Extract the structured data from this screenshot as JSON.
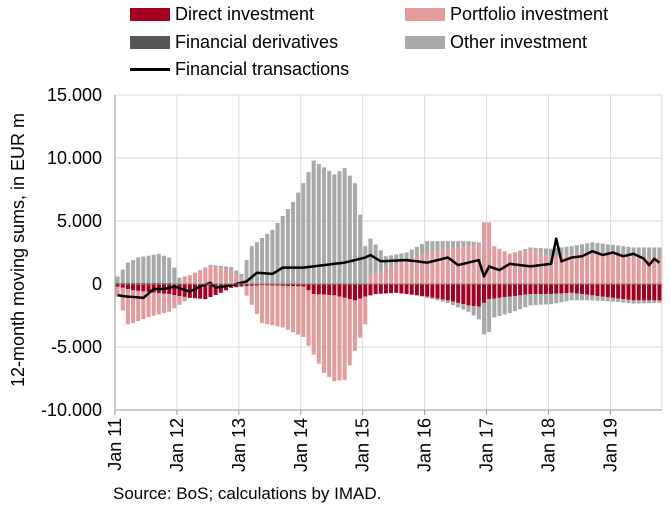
{
  "legend": {
    "direct": "Direct investment",
    "portfolio": "Portfolio investment",
    "derivatives": "Financial derivatives",
    "other": "Other investment",
    "transactions": "Financial transactions"
  },
  "source": "Source: BoS; calculations by IMAD.",
  "colors": {
    "direct": "#a50021",
    "portfolio": "#e39b9b",
    "derivatives": "#555555",
    "other": "#a9a9a9",
    "transactions": "#000000"
  },
  "chart_data": {
    "type": "bar",
    "subtype": "stacked-bar-with-line",
    "ylabel": "12-month moving sums, in EUR m",
    "ylim": [
      -10000,
      15000
    ],
    "y_ticks": [
      "15.000",
      "10.000",
      "5.000",
      "0",
      "-5.000",
      "-10.000"
    ],
    "y_tick_values": [
      15000,
      10000,
      5000,
      0,
      -5000,
      -10000
    ],
    "x_ticks": [
      "Jan 11",
      "Jan 12",
      "Jan 13",
      "Jan 14",
      "Jan 15",
      "Jan 16",
      "Jan 17",
      "Jan 18",
      "Jan 19"
    ],
    "x_tick_index": [
      0,
      12,
      24,
      36,
      48,
      60,
      72,
      84,
      96
    ],
    "grid": true,
    "periods": 106,
    "anchors": {
      "direct_pos": [
        [
          0,
          0
        ],
        [
          12,
          0
        ],
        [
          24,
          0
        ],
        [
          36,
          0
        ],
        [
          48,
          0
        ],
        [
          60,
          0
        ],
        [
          72,
          0
        ],
        [
          84,
          0
        ],
        [
          96,
          0
        ],
        [
          105,
          0
        ]
      ],
      "direct_neg": [
        [
          0,
          -200
        ],
        [
          3,
          -500
        ],
        [
          10,
          -800
        ],
        [
          14,
          -1100
        ],
        [
          17,
          -1200
        ],
        [
          20,
          -700
        ],
        [
          22,
          -300
        ],
        [
          24,
          -200
        ],
        [
          28,
          -100
        ],
        [
          36,
          -200
        ],
        [
          38,
          -800
        ],
        [
          42,
          -900
        ],
        [
          46,
          -1300
        ],
        [
          48,
          -1000
        ],
        [
          50,
          -800
        ],
        [
          54,
          -700
        ],
        [
          58,
          -900
        ],
        [
          60,
          -1000
        ],
        [
          64,
          -1300
        ],
        [
          68,
          -1700
        ],
        [
          70,
          -1800
        ],
        [
          72,
          -1200
        ],
        [
          76,
          -1000
        ],
        [
          80,
          -800
        ],
        [
          84,
          -800
        ],
        [
          88,
          -700
        ],
        [
          92,
          -900
        ],
        [
          96,
          -1100
        ],
        [
          100,
          -1300
        ],
        [
          105,
          -1300
        ]
      ],
      "portfolio_pos": [
        [
          0,
          0
        ],
        [
          12,
          0
        ],
        [
          14,
          700
        ],
        [
          18,
          1400
        ],
        [
          22,
          1100
        ],
        [
          24,
          500
        ],
        [
          26,
          0
        ],
        [
          48,
          0
        ],
        [
          49,
          600
        ],
        [
          52,
          1300
        ],
        [
          56,
          1800
        ],
        [
          60,
          2500
        ],
        [
          64,
          2800
        ],
        [
          68,
          3000
        ],
        [
          70,
          3100
        ],
        [
          71,
          4900
        ],
        [
          72,
          4900
        ],
        [
          73,
          3000
        ],
        [
          76,
          2400
        ],
        [
          80,
          2700
        ],
        [
          84,
          2200
        ],
        [
          88,
          2300
        ],
        [
          92,
          2400
        ],
        [
          96,
          2400
        ],
        [
          100,
          2100
        ],
        [
          105,
          2000
        ]
      ],
      "portfolio_neg": [
        [
          0,
          -800
        ],
        [
          2,
          -2800
        ],
        [
          6,
          -2000
        ],
        [
          10,
          -1400
        ],
        [
          12,
          -700
        ],
        [
          14,
          0
        ],
        [
          24,
          0
        ],
        [
          26,
          -1500
        ],
        [
          28,
          -3000
        ],
        [
          32,
          -3300
        ],
        [
          36,
          -4000
        ],
        [
          38,
          -4800
        ],
        [
          40,
          -6200
        ],
        [
          42,
          -6800
        ],
        [
          44,
          -6500
        ],
        [
          46,
          -4000
        ],
        [
          48,
          -2200
        ],
        [
          49,
          0
        ],
        [
          105,
          0
        ]
      ],
      "derivatives_pos": [
        [
          0,
          100
        ],
        [
          10,
          100
        ],
        [
          12,
          0
        ],
        [
          105,
          0
        ]
      ],
      "derivatives_neg": [
        [
          0,
          0
        ],
        [
          105,
          0
        ]
      ],
      "other_pos": [
        [
          0,
          500
        ],
        [
          2,
          1600
        ],
        [
          4,
          2000
        ],
        [
          8,
          2300
        ],
        [
          10,
          2000
        ],
        [
          12,
          500
        ],
        [
          14,
          0
        ],
        [
          24,
          300
        ],
        [
          26,
          3000
        ],
        [
          30,
          4300
        ],
        [
          34,
          6500
        ],
        [
          36,
          8000
        ],
        [
          38,
          9800
        ],
        [
          42,
          8700
        ],
        [
          44,
          9200
        ],
        [
          46,
          8000
        ],
        [
          48,
          3000
        ],
        [
          49,
          3000
        ],
        [
          52,
          900
        ],
        [
          56,
          700
        ],
        [
          60,
          900
        ],
        [
          64,
          600
        ],
        [
          68,
          400
        ],
        [
          70,
          200
        ],
        [
          71,
          0
        ],
        [
          72,
          0
        ],
        [
          73,
          0
        ],
        [
          76,
          0
        ],
        [
          80,
          200
        ],
        [
          84,
          600
        ],
        [
          88,
          700
        ],
        [
          92,
          900
        ],
        [
          96,
          700
        ],
        [
          100,
          800
        ],
        [
          105,
          900
        ]
      ],
      "other_neg": [
        [
          0,
          0
        ],
        [
          48,
          0
        ],
        [
          58,
          0
        ],
        [
          60,
          -100
        ],
        [
          64,
          -200
        ],
        [
          68,
          -500
        ],
        [
          70,
          -1000
        ],
        [
          71,
          -2500
        ],
        [
          72,
          -2600
        ],
        [
          73,
          -1500
        ],
        [
          76,
          -1300
        ],
        [
          80,
          -900
        ],
        [
          84,
          -800
        ],
        [
          88,
          -600
        ],
        [
          92,
          -400
        ],
        [
          96,
          -300
        ],
        [
          105,
          -200
        ]
      ],
      "transactions": [
        [
          0,
          -900
        ],
        [
          2,
          -1000
        ],
        [
          5,
          -1100
        ],
        [
          7,
          -400
        ],
        [
          9,
          -400
        ],
        [
          11,
          -200
        ],
        [
          14,
          -600
        ],
        [
          16,
          -200
        ],
        [
          18,
          100
        ],
        [
          19,
          -300
        ],
        [
          22,
          -100
        ],
        [
          25,
          200
        ],
        [
          27,
          900
        ],
        [
          30,
          800
        ],
        [
          32,
          1300
        ],
        [
          36,
          1300
        ],
        [
          40,
          1500
        ],
        [
          44,
          1700
        ],
        [
          46,
          1900
        ],
        [
          48,
          2100
        ],
        [
          49,
          2300
        ],
        [
          51,
          1800
        ],
        [
          56,
          1900
        ],
        [
          60,
          1700
        ],
        [
          62,
          1900
        ],
        [
          64,
          2100
        ],
        [
          66,
          1500
        ],
        [
          70,
          1900
        ],
        [
          71,
          600
        ],
        [
          72,
          1400
        ],
        [
          74,
          1100
        ],
        [
          76,
          1600
        ],
        [
          80,
          1400
        ],
        [
          84,
          1600
        ],
        [
          85,
          3600
        ],
        [
          86,
          1800
        ],
        [
          88,
          2100
        ],
        [
          90,
          2200
        ],
        [
          92,
          2600
        ],
        [
          94,
          2300
        ],
        [
          96,
          2500
        ],
        [
          98,
          2200
        ],
        [
          100,
          2400
        ],
        [
          102,
          2000
        ],
        [
          103,
          1500
        ],
        [
          104,
          2000
        ],
        [
          105,
          1700
        ]
      ]
    }
  }
}
